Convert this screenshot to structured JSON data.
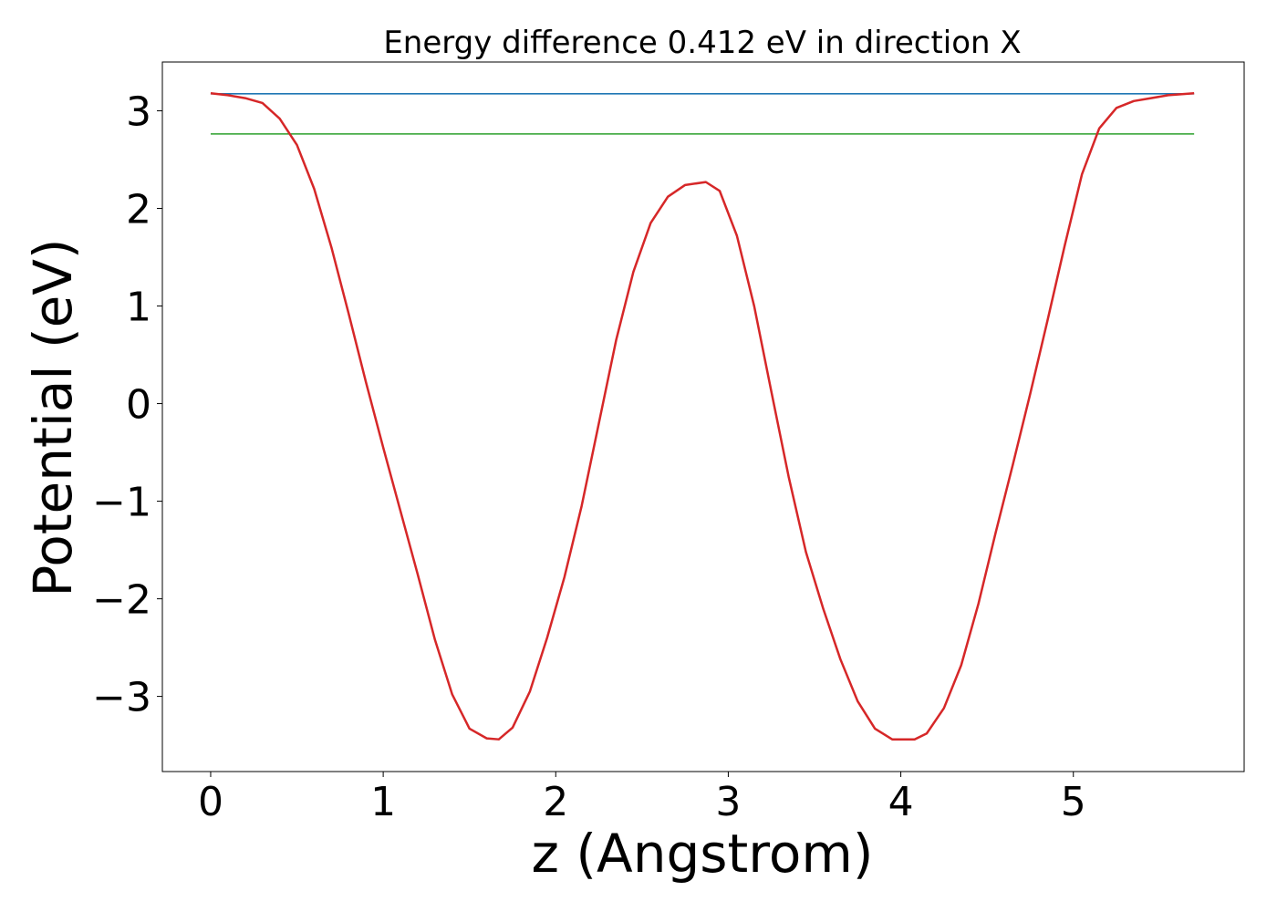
{
  "chart_data": {
    "type": "line",
    "title": "Energy difference 0.412 eV in direction X",
    "xlabel": "z (Angstrom)",
    "ylabel": "Potential (eV)",
    "xlim": [
      -0.28,
      5.99
    ],
    "ylim": [
      -3.77,
      3.5
    ],
    "x_ticks": [
      0,
      1,
      2,
      3,
      4,
      5
    ],
    "x_tick_labels": [
      "0",
      "1",
      "2",
      "3",
      "4",
      "5"
    ],
    "y_ticks": [
      -3,
      -2,
      -1,
      0,
      1,
      2,
      3
    ],
    "y_tick_labels": [
      "−3",
      "−2",
      "−1",
      "0",
      "1",
      "2",
      "3"
    ],
    "grid": false,
    "series": [
      {
        "color": "#d62728",
        "x": [
          0.0,
          0.1,
          0.2,
          0.3,
          0.4,
          0.5,
          0.6,
          0.7,
          0.8,
          0.9,
          1.0,
          1.1,
          1.2,
          1.3,
          1.4,
          1.5,
          1.6,
          1.67,
          1.75,
          1.85,
          1.95,
          2.05,
          2.15,
          2.25,
          2.35,
          2.45,
          2.55,
          2.65,
          2.75,
          2.87,
          2.95,
          3.05,
          3.15,
          3.25,
          3.35,
          3.45,
          3.55,
          3.65,
          3.75,
          3.85,
          3.95,
          4.08,
          4.15,
          4.25,
          4.35,
          4.45,
          4.55,
          4.65,
          4.75,
          4.85,
          4.95,
          5.05,
          5.15,
          5.25,
          5.35,
          5.45,
          5.55,
          5.7
        ],
        "y": [
          3.18,
          3.16,
          3.13,
          3.08,
          2.92,
          2.65,
          2.2,
          1.6,
          0.92,
          0.22,
          -0.45,
          -1.1,
          -1.75,
          -2.42,
          -2.98,
          -3.33,
          -3.43,
          -3.44,
          -3.32,
          -2.95,
          -2.4,
          -1.78,
          -1.05,
          -0.2,
          0.65,
          1.35,
          1.85,
          2.12,
          2.24,
          2.27,
          2.18,
          1.72,
          1.0,
          0.12,
          -0.75,
          -1.52,
          -2.1,
          -2.62,
          -3.05,
          -3.33,
          -3.44,
          -3.44,
          -3.38,
          -3.12,
          -2.68,
          -2.05,
          -1.32,
          -0.62,
          0.1,
          0.85,
          1.62,
          2.35,
          2.82,
          3.03,
          3.1,
          3.13,
          3.16,
          3.18
        ]
      },
      {
        "color": "#1f77b4",
        "x": [
          0.0,
          5.7
        ],
        "y": [
          3.175,
          3.175
        ]
      },
      {
        "color": "#2ca02c",
        "x": [
          0.0,
          5.7
        ],
        "y": [
          2.763,
          2.763
        ]
      }
    ]
  }
}
